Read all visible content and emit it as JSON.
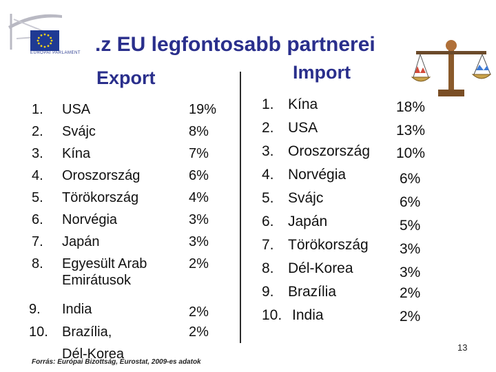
{
  "logo": {
    "label": "EURÓPAI PARLAMENT",
    "icon": "eu-flag-icon"
  },
  "title": ".z EU legfontosabb partnerei",
  "export": {
    "header": "Export",
    "items": [
      {
        "num": "1.",
        "name": "USA",
        "pct": "19%"
      },
      {
        "num": "2.",
        "name": "Svájc",
        "pct": "8%"
      },
      {
        "num": "3.",
        "name": "Kína",
        "pct": "7%"
      },
      {
        "num": "4.",
        "name": "Oroszország",
        "pct": "6%"
      },
      {
        "num": "5.",
        "name": "Törökország",
        "pct": "4%"
      },
      {
        "num": "6.",
        "name": "Norvégia",
        "pct": "3%"
      },
      {
        "num": "7.",
        "name": "Japán",
        "pct": "3%"
      },
      {
        "num": "8.",
        "name": "Egyesült Arab",
        "name2": "Emirátusok",
        "pct": "2%"
      },
      {
        "num": "9.",
        "name": "India",
        "pct": "2%"
      },
      {
        "num": "10.",
        "name": "Brazília,",
        "name2": "Dél-Korea",
        "pct": "2%"
      }
    ]
  },
  "import": {
    "header": "Import",
    "items": [
      {
        "num": "1.",
        "name": "Kína",
        "pct": "18%"
      },
      {
        "num": "2.",
        "name": "USA",
        "pct": "13%"
      },
      {
        "num": "3.",
        "name": "Oroszország",
        "pct": "10%"
      },
      {
        "num": "4.",
        "name": "Norvégia",
        "pct": "6%"
      },
      {
        "num": "5.",
        "name": "Svájc",
        "pct": "6%"
      },
      {
        "num": "6.",
        "name": "Japán",
        "pct": "5%"
      },
      {
        "num": "7.",
        "name": "Törökország",
        "pct": "3%"
      },
      {
        "num": "8.",
        "name": "Dél-Korea",
        "pct": "3%"
      },
      {
        "num": "9.",
        "name": "Brazília",
        "pct": "2%"
      },
      {
        "num": "10.",
        "name": "India",
        "pct": "2%"
      }
    ]
  },
  "scale_icon": "balance-scale-icon",
  "source": "Forrás: Európai Bizottság, Eurostat, 2009-es adatok",
  "page_number": "13",
  "colors": {
    "accent": "#2a2f8c",
    "eu_blue": "#1f3a93",
    "eu_star": "#f2d21b"
  }
}
